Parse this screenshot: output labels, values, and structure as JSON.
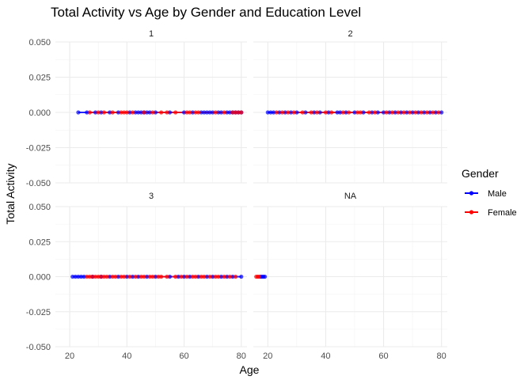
{
  "chart_data": {
    "type": "scatter",
    "title": "Total Activity vs Age by Gender and Education Level",
    "xlabel": "Age",
    "ylabel": "Total Activity",
    "xlim": [
      15,
      82
    ],
    "ylim": [
      -0.05,
      0.05
    ],
    "x_ticks": [
      20,
      40,
      60,
      80
    ],
    "y_ticks": [
      -0.05,
      -0.025,
      0,
      0.025,
      0.05
    ],
    "y_tick_labels": [
      "-0.050",
      "-0.025",
      "0.000",
      "0.025",
      "0.050"
    ],
    "grid": true,
    "legend": {
      "title": "Gender",
      "position": "right",
      "entries": [
        {
          "name": "Male",
          "color": "#0000ff"
        },
        {
          "name": "Female",
          "color": "#ff0000"
        }
      ]
    },
    "panels": [
      {
        "label": "1",
        "series": [
          {
            "name": "Male",
            "x": [
              23,
              26,
              29,
              31,
              34,
              37,
              41,
              43,
              44,
              45,
              46,
              47,
              48,
              50,
              55,
              60,
              63,
              66,
              67,
              68,
              69,
              70,
              72,
              73,
              75,
              76,
              77,
              78,
              79,
              80
            ],
            "y": [
              0,
              0,
              0,
              0,
              0,
              0,
              0,
              0,
              0,
              0,
              0,
              0,
              0,
              0,
              0,
              0,
              0,
              0,
              0,
              0,
              0,
              0,
              0,
              0,
              0,
              0,
              0,
              0,
              0,
              0
            ]
          },
          {
            "name": "Female",
            "x": [
              27,
              30,
              32,
              35,
              38,
              39,
              40,
              42,
              46,
              49,
              52,
              54,
              57,
              61,
              62,
              64,
              65,
              71,
              74,
              77,
              78,
              79,
              80
            ],
            "y": [
              0,
              0,
              0,
              0,
              0,
              0,
              0,
              0,
              0,
              0,
              0,
              0,
              0,
              0,
              0,
              0,
              0,
              0,
              0,
              0,
              0,
              0,
              0
            ]
          }
        ]
      },
      {
        "label": "2",
        "series": [
          {
            "name": "Male",
            "x": [
              20,
              21,
              22,
              24,
              26,
              28,
              30,
              33,
              36,
              38,
              41,
              44,
              45,
              47,
              50,
              53,
              56,
              58,
              60,
              62,
              64,
              66,
              68,
              70,
              72,
              74,
              76,
              78,
              80
            ],
            "y": [
              0,
              0,
              0,
              0,
              0,
              0,
              0,
              0,
              0,
              0,
              0,
              0,
              0,
              0,
              0,
              0,
              0,
              0,
              0,
              0,
              0,
              0,
              0,
              0,
              0,
              0,
              0,
              0,
              0
            ]
          },
          {
            "name": "Female",
            "x": [
              23,
              25,
              27,
              29,
              32,
              35,
              37,
              40,
              42,
              46,
              48,
              51,
              52,
              55,
              57,
              61,
              63,
              65,
              67,
              69,
              71,
              73,
              75,
              77,
              79
            ],
            "y": [
              0,
              0,
              0,
              0,
              0,
              0,
              0,
              0,
              0,
              0,
              0,
              0,
              0,
              0,
              0,
              0,
              0,
              0,
              0,
              0,
              0,
              0,
              0,
              0,
              0
            ]
          }
        ]
      },
      {
        "label": "3",
        "series": [
          {
            "name": "Male",
            "x": [
              21,
              22,
              23,
              24,
              25,
              28,
              31,
              34,
              37,
              40,
              42,
              44,
              47,
              50,
              55,
              58,
              60,
              62,
              65,
              68,
              70,
              73,
              75,
              77,
              80
            ],
            "y": [
              0,
              0,
              0,
              0,
              0,
              0,
              0,
              0,
              0,
              0,
              0,
              0,
              0,
              0,
              0,
              0,
              0,
              0,
              0,
              0,
              0,
              0,
              0,
              0,
              0
            ]
          },
          {
            "name": "Female",
            "x": [
              26,
              27,
              28,
              29,
              30,
              31,
              32,
              33,
              35,
              36,
              38,
              39,
              41,
              43,
              45,
              46,
              48,
              49,
              51,
              52,
              54,
              57,
              59,
              61,
              63,
              64,
              66,
              67,
              69,
              71,
              72,
              74,
              76,
              78
            ],
            "y": [
              0,
              0,
              0,
              0,
              0,
              0,
              0,
              0,
              0,
              0,
              0,
              0,
              0,
              0,
              0,
              0,
              0,
              0,
              0,
              0,
              0,
              0,
              0,
              0,
              0,
              0,
              0,
              0,
              0,
              0,
              0,
              0,
              0,
              0
            ]
          }
        ]
      },
      {
        "label": "NA",
        "series": [
          {
            "name": "Male",
            "x": [
              17.5,
              18,
              18.5,
              19
            ],
            "y": [
              0,
              0,
              0,
              0
            ]
          },
          {
            "name": "Female",
            "x": [
              16,
              16.5,
              17
            ],
            "y": [
              0,
              0,
              0
            ]
          }
        ]
      }
    ]
  }
}
